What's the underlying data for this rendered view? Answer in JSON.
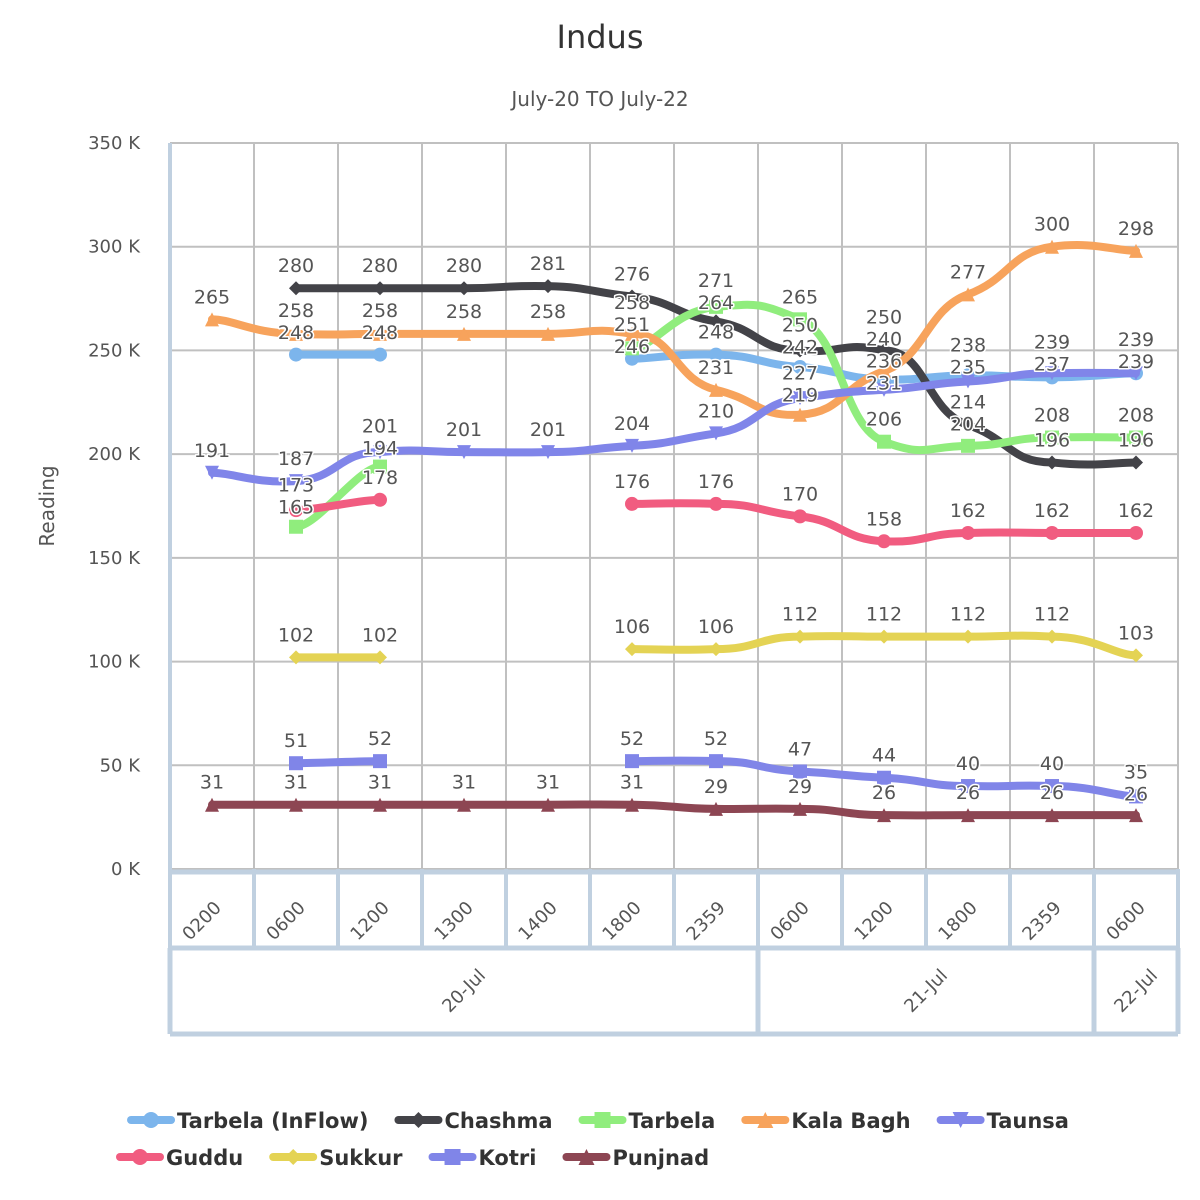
{
  "chart_data": {
    "type": "line",
    "title": "Indus",
    "subtitle": "July-20 TO July-22",
    "ylabel": "Reading",
    "xlabel": "",
    "ylim": [
      0,
      350
    ],
    "yticks": [
      0,
      50,
      100,
      150,
      200,
      250,
      300,
      350
    ],
    "ytick_labels": [
      "0 K",
      "50 K",
      "100 K",
      "150 K",
      "200 K",
      "250 K",
      "300 K",
      "350 K"
    ],
    "grid": true,
    "legend_position": "bottom",
    "categories": [
      "0200",
      "0600",
      "1200",
      "1300",
      "1400",
      "1800",
      "2359",
      "0600",
      "1200",
      "1800",
      "2359",
      "0600"
    ],
    "category_groups": [
      {
        "label": "20-Jul",
        "count": 7
      },
      {
        "label": "21-Jul",
        "count": 4
      },
      {
        "label": "22-Jul",
        "count": 1
      }
    ],
    "series": [
      {
        "name": "Tarbela (InFlow)",
        "color": "#7cb5ec",
        "marker": "circle",
        "values": [
          null,
          248,
          248,
          null,
          null,
          246,
          248,
          242,
          236,
          238,
          237,
          239
        ]
      },
      {
        "name": "Chashma",
        "color": "#434348",
        "marker": "diamond",
        "values": [
          null,
          280,
          280,
          280,
          281,
          276,
          264,
          250,
          250,
          214,
          196,
          196
        ]
      },
      {
        "name": "Tarbela",
        "color": "#90ed7d",
        "marker": "square",
        "values": [
          null,
          165,
          194,
          null,
          null,
          251,
          271,
          265,
          206,
          204,
          208,
          208
        ]
      },
      {
        "name": "Kala Bagh",
        "color": "#f7a35c",
        "marker": "triangle",
        "values": [
          265,
          258,
          258,
          258,
          258,
          258,
          231,
          219,
          240,
          277,
          300,
          298
        ]
      },
      {
        "name": "Taunsa",
        "color": "#8085e9",
        "marker": "triangle-down",
        "values": [
          191,
          187,
          201,
          201,
          201,
          204,
          210,
          227,
          231,
          235,
          239,
          239
        ]
      },
      {
        "name": "Guddu",
        "color": "#f15c80",
        "marker": "circle",
        "values": [
          null,
          173,
          178,
          null,
          null,
          176,
          176,
          170,
          158,
          162,
          162,
          162
        ]
      },
      {
        "name": "Sukkur",
        "color": "#e4d354",
        "marker": "diamond",
        "values": [
          null,
          102,
          102,
          null,
          null,
          106,
          106,
          112,
          112,
          112,
          112,
          103
        ]
      },
      {
        "name": "Kotri",
        "color": "#8085e8",
        "marker": "square",
        "values": [
          null,
          51,
          52,
          null,
          null,
          52,
          52,
          47,
          44,
          40,
          40,
          35
        ]
      },
      {
        "name": "Punjnad",
        "color": "#8d4653",
        "marker": "triangle",
        "values": [
          31,
          31,
          31,
          31,
          31,
          31,
          29,
          29,
          26,
          26,
          26,
          26
        ]
      }
    ]
  }
}
